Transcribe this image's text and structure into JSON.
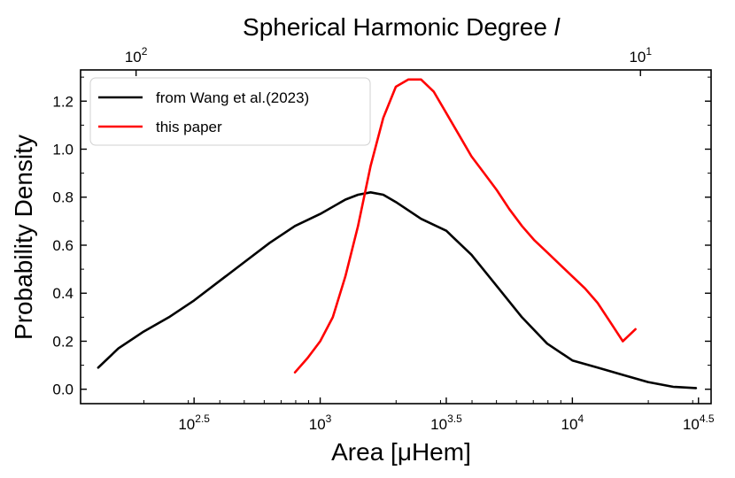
{
  "chart_data": {
    "type": "line",
    "title": "",
    "xlabel": "Area [μHem]",
    "ylabel": "Probability Density",
    "x_scale": "log10",
    "xlim": [
      2.05,
      4.55
    ],
    "ylim": [
      -0.06,
      1.33
    ],
    "x_ticks": [
      {
        "value": 2.5,
        "base": "10",
        "exp": "2.5"
      },
      {
        "value": 3.0,
        "base": "10",
        "exp": "3"
      },
      {
        "value": 3.5,
        "base": "10",
        "exp": "3.5"
      },
      {
        "value": 4.0,
        "base": "10",
        "exp": "4"
      },
      {
        "value": 4.5,
        "base": "10",
        "exp": "4.5"
      }
    ],
    "y_ticks": [
      {
        "value": 0.0,
        "label": "0.0"
      },
      {
        "value": 0.2,
        "label": "0.2"
      },
      {
        "value": 0.4,
        "label": "0.4"
      },
      {
        "value": 0.6,
        "label": "0.6"
      },
      {
        "value": 0.8,
        "label": "0.8"
      },
      {
        "value": 1.0,
        "label": "1.0"
      },
      {
        "value": 1.2,
        "label": "1.2"
      }
    ],
    "secondary_x_axis": {
      "label": "Spherical Harmonic Degree ",
      "label_italic": "l",
      "ticks": [
        {
          "value": 2.27,
          "base": "10",
          "exp": "2"
        },
        {
          "value": 4.27,
          "base": "10",
          "exp": "1"
        }
      ]
    },
    "legend": {
      "placement": "top-left"
    },
    "grid": false,
    "series": [
      {
        "name": "from Wang et al.(2023)",
        "color": "#000000",
        "x": [
          2.12,
          2.2,
          2.3,
          2.4,
          2.5,
          2.6,
          2.7,
          2.8,
          2.9,
          3.0,
          3.1,
          3.15,
          3.2,
          3.25,
          3.3,
          3.4,
          3.5,
          3.6,
          3.7,
          3.8,
          3.9,
          4.0,
          4.1,
          4.2,
          4.3,
          4.4,
          4.49
        ],
        "y": [
          0.09,
          0.17,
          0.24,
          0.3,
          0.37,
          0.45,
          0.53,
          0.61,
          0.68,
          0.73,
          0.79,
          0.81,
          0.82,
          0.81,
          0.78,
          0.71,
          0.66,
          0.56,
          0.43,
          0.3,
          0.19,
          0.12,
          0.09,
          0.06,
          0.03,
          0.01,
          0.005
        ]
      },
      {
        "name": "this paper",
        "color": "#ff0000",
        "x": [
          2.9,
          2.95,
          3.0,
          3.05,
          3.1,
          3.15,
          3.2,
          3.25,
          3.3,
          3.35,
          3.4,
          3.45,
          3.5,
          3.55,
          3.6,
          3.65,
          3.7,
          3.75,
          3.8,
          3.85,
          3.9,
          3.95,
          4.0,
          4.05,
          4.1,
          4.15,
          4.2,
          4.25
        ],
        "y": [
          0.07,
          0.13,
          0.2,
          0.3,
          0.47,
          0.68,
          0.93,
          1.13,
          1.26,
          1.29,
          1.29,
          1.24,
          1.15,
          1.06,
          0.97,
          0.9,
          0.83,
          0.75,
          0.68,
          0.62,
          0.57,
          0.52,
          0.47,
          0.42,
          0.36,
          0.28,
          0.2,
          0.25
        ]
      }
    ]
  }
}
